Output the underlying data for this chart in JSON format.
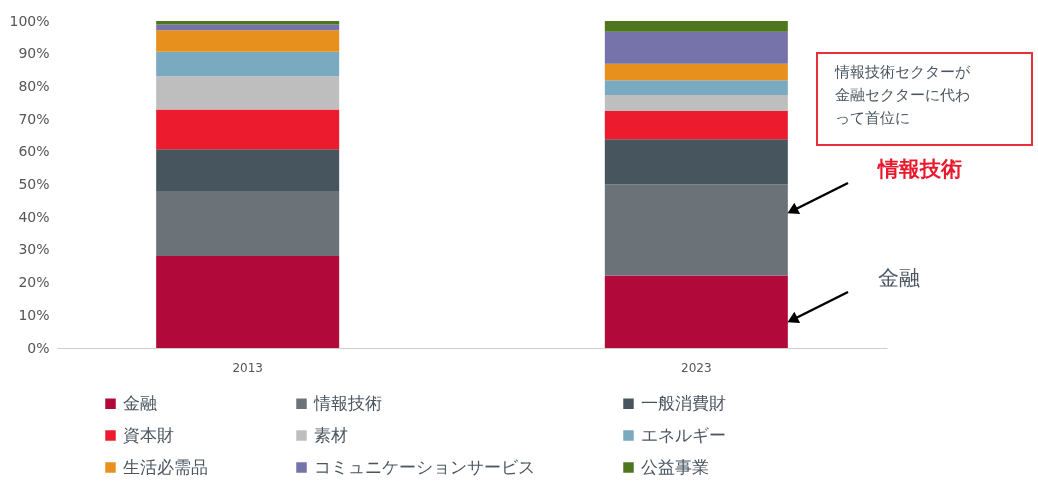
{
  "chart_data": {
    "type": "bar",
    "stacked": true,
    "categories": [
      "2013",
      "2023"
    ],
    "series": [
      {
        "name": "金融",
        "color": "#b0093a",
        "values": [
          28.1,
          22.2
        ]
      },
      {
        "name": "情報技術",
        "color": "#6b7378",
        "values": [
          19.9,
          27.9
        ]
      },
      {
        "name": "一般消費財",
        "color": "#47555e",
        "values": [
          12.8,
          13.7
        ]
      },
      {
        "name": "資本財",
        "color": "#ec1c2e",
        "values": [
          12.1,
          8.7
        ]
      },
      {
        "name": "素材",
        "color": "#bebebe",
        "values": [
          10.2,
          4.9
        ]
      },
      {
        "name": "エネルギー",
        "color": "#7aaabf",
        "values": [
          7.5,
          4.5
        ]
      },
      {
        "name": "生活必需品",
        "color": "#e8901e",
        "values": [
          6.6,
          5.0
        ]
      },
      {
        "name": "コミュニケーションサービス",
        "color": "#7673aa",
        "values": [
          1.7,
          9.8
        ]
      },
      {
        "name": "公益事業",
        "color": "#4e761e",
        "values": [
          1.1,
          3.3
        ]
      }
    ],
    "ylim": [
      0,
      100
    ],
    "yticks": [
      {
        "value": 0,
        "label": "0%"
      },
      {
        "value": 10,
        "label": "10%"
      },
      {
        "value": 20,
        "label": "20%"
      },
      {
        "value": 30,
        "label": "30%"
      },
      {
        "value": 40,
        "label": "40%"
      },
      {
        "value": 50,
        "label": "50%"
      },
      {
        "value": 60,
        "label": "60%"
      },
      {
        "value": 70,
        "label": "70%"
      },
      {
        "value": 80,
        "label": "80%"
      },
      {
        "value": 90,
        "label": "90%"
      },
      {
        "value": 100,
        "label": "100%"
      }
    ],
    "grid": false,
    "legend": "bottom",
    "annotations": [
      "情報技術セクターが金融セクターに代わって首位に",
      "情報技術",
      "金融"
    ]
  }
}
